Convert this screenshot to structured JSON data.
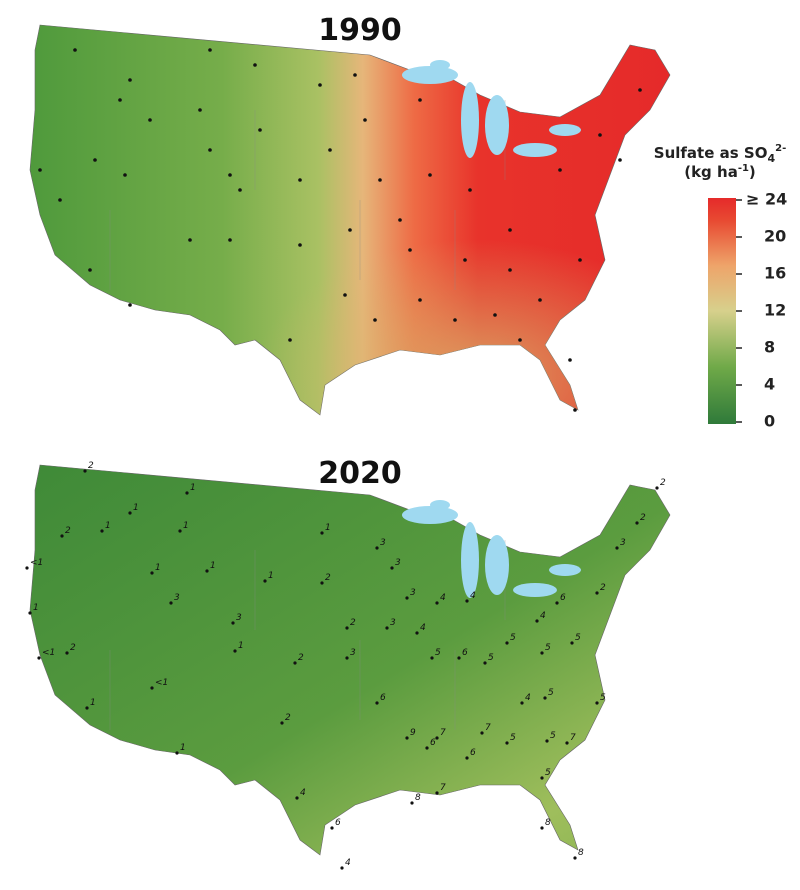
{
  "map_1990": {
    "title": "1990"
  },
  "map_2020": {
    "title": "2020",
    "site_labels": [
      "2",
      "1",
      "1",
      "2",
      "1",
      "1",
      "<1",
      "1",
      "1",
      "1",
      "3",
      "1",
      "<1",
      "2",
      "3",
      "1",
      "2",
      "<1",
      "1",
      "2",
      "1",
      "2",
      "3",
      "3",
      "2",
      "1",
      "3",
      "3",
      "3",
      "4",
      "4",
      "4",
      "5",
      "6",
      "5",
      "5",
      "4",
      "5",
      "5",
      "6",
      "2",
      "3",
      "2",
      "2",
      "6",
      "9",
      "6",
      "7",
      "6",
      "7",
      "5",
      "5",
      "7",
      "5",
      "4",
      "8",
      "7",
      "6",
      "8",
      "8",
      "4",
      "4",
      "5",
      "5"
    ]
  },
  "legend": {
    "title_parts": [
      "Sulfate as SO",
      "4",
      "2-"
    ],
    "units_parts": [
      "(kg ha",
      "-1",
      ")"
    ],
    "range": [
      0,
      24
    ],
    "ticks": [
      0,
      4,
      8,
      12,
      16,
      20,
      {
        "value": 24,
        "label": "≥ 24"
      }
    ]
  }
}
